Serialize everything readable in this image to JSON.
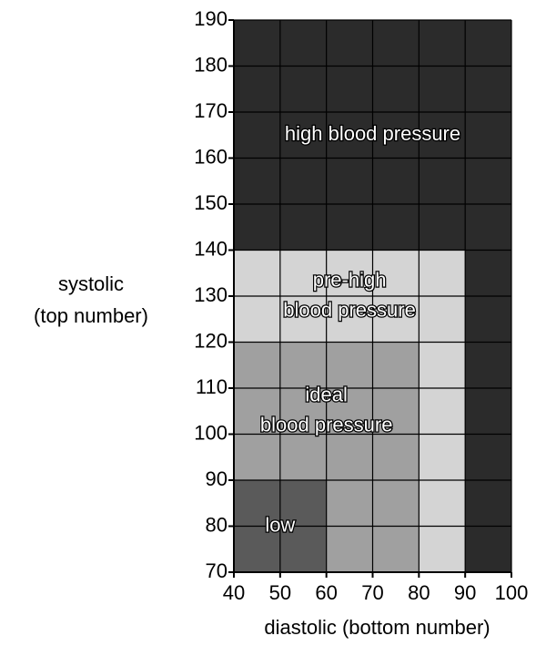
{
  "chart_data": {
    "type": "region",
    "x_label": "diastolic (bottom number)",
    "y_label": [
      "systolic",
      "(top number)"
    ],
    "xlim": [
      40,
      100
    ],
    "xticks": [
      40,
      50,
      60,
      70,
      80,
      90,
      100
    ],
    "ylim": [
      70,
      190
    ],
    "yticks": [
      70,
      80,
      90,
      100,
      110,
      120,
      130,
      140,
      150,
      160,
      170,
      180,
      190
    ],
    "grid": true,
    "regions": [
      {
        "label": [
          "high blood pressure"
        ],
        "color": "#2b2b2b",
        "rects": [
          {
            "x": [
              40,
              100
            ],
            "y": [
              140,
              190
            ]
          },
          {
            "x": [
              90,
              100
            ],
            "y": [
              70,
              140
            ]
          }
        ]
      },
      {
        "label": [
          "pre-high",
          "blood pressure"
        ],
        "color": "#d4d4d4",
        "rects": [
          {
            "x": [
              40,
              90
            ],
            "y": [
              120,
              140
            ]
          },
          {
            "x": [
              80,
              90
            ],
            "y": [
              70,
              120
            ]
          }
        ]
      },
      {
        "label": [
          "ideal",
          "blood pressure"
        ],
        "color": "#a0a0a0",
        "rects": [
          {
            "x": [
              40,
              80
            ],
            "y": [
              90,
              120
            ]
          },
          {
            "x": [
              60,
              80
            ],
            "y": [
              70,
              90
            ]
          }
        ]
      },
      {
        "label": [
          "low"
        ],
        "color": "#5a5a5a",
        "rects": [
          {
            "x": [
              40,
              60
            ],
            "y": [
              70,
              90
            ]
          }
        ]
      }
    ]
  }
}
